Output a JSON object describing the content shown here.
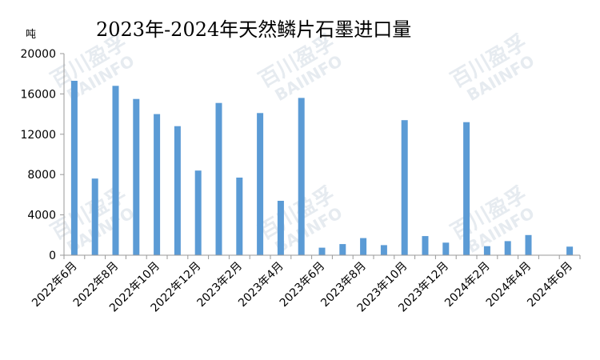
{
  "watermark": {
    "cn": "百川盈孚",
    "en": "BAIINFO"
  },
  "chart_data": {
    "type": "bar",
    "title": "2023年-2024年天然鳞片石墨进口量",
    "ylabel": "吨",
    "xlabel": "",
    "ylim": [
      0,
      20000
    ],
    "yticks": [
      0,
      4000,
      8000,
      12000,
      16000,
      20000
    ],
    "grid": false,
    "bar_color": "#5b9bd5",
    "categories": [
      "2022年6月",
      "2022年7月",
      "2022年8月",
      "2022年9月",
      "2022年10月",
      "2022年11月",
      "2022年12月",
      "2023年1月",
      "2023年2月",
      "2023年3月",
      "2023年4月",
      "2023年5月",
      "2023年6月",
      "2023年7月",
      "2023年8月",
      "2023年9月",
      "2023年10月",
      "2023年11月",
      "2023年12月",
      "2024年1月",
      "2024年2月",
      "2024年3月",
      "2024年4月",
      "2024年5月",
      "2024年6月"
    ],
    "xtick_labels": [
      "2022年6月",
      "2022年8月",
      "2022年10月",
      "2022年12月",
      "2023年2月",
      "2023年4月",
      "2023年6月",
      "2023年8月",
      "2023年10月",
      "2023年12月",
      "2024年2月",
      "2024年4月",
      "2024年6月"
    ],
    "values": [
      17300,
      7600,
      16800,
      15500,
      14000,
      12800,
      8400,
      15100,
      7700,
      14100,
      5400,
      15600,
      750,
      1100,
      1700,
      1000,
      13400,
      1900,
      1250,
      13200,
      900,
      1400,
      2000,
      0,
      850
    ]
  }
}
